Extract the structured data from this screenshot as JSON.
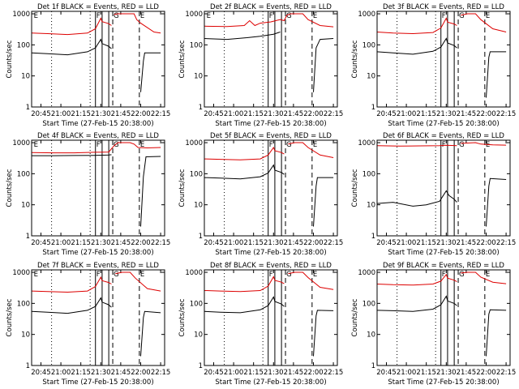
{
  "colors": {
    "events": "#000000",
    "lld": "#dd0000",
    "background": "#ffffff"
  },
  "chart_data": [
    {
      "type": "line",
      "title": "Det 1f BLACK = Events, RED = LLD",
      "xlabel": "Start Time (27-Feb-15 20:38:00)",
      "ylabel": "Counts/sec",
      "x_ticks": [
        "20:45",
        "21:00",
        "21:15",
        "21:30",
        "21:45",
        "22:00",
        "22:15"
      ],
      "y_ticks": [
        "1",
        "10",
        "100",
        "1000"
      ],
      "yscale": "log",
      "ylim": [
        1,
        1200
      ],
      "markers": [
        "E",
        "F",
        "G",
        "E"
      ],
      "series": [
        {
          "name": "LLD",
          "x": [
            "20:38",
            "20:50",
            "21:05",
            "21:20",
            "21:26",
            "21:30",
            "21:31",
            "21:36",
            "21:38",
            "21:39",
            "21:40",
            "21:43",
            "21:48",
            "21:55",
            "21:57",
            "22:00",
            "22:10",
            "22:15"
          ],
          "y": [
            240,
            230,
            215,
            240,
            330,
            720,
            560,
            480,
            420,
            null,
            950,
            1000,
            1000,
            1000,
            650,
            500,
            260,
            240
          ]
        },
        {
          "name": "Events",
          "x": [
            "20:38",
            "20:50",
            "21:05",
            "21:20",
            "21:26",
            "21:30",
            "21:31",
            "21:36",
            "21:38",
            "21:39",
            "21:59",
            "22:00",
            "22:02",
            "22:03",
            "22:15"
          ],
          "y": [
            55,
            52,
            48,
            60,
            80,
            150,
            110,
            90,
            75,
            null,
            null,
            3,
            30,
            55,
            55
          ]
        }
      ]
    },
    {
      "type": "line",
      "title": "Det 2f BLACK = Events, RED = LLD",
      "xlabel": "Start Time (27-Feb-15 20:38:00)",
      "ylabel": "Counts/sec",
      "x_ticks": [
        "20:45",
        "21:00",
        "21:15",
        "21:30",
        "21:45",
        "22:00",
        "22:15"
      ],
      "y_ticks": [
        "1",
        "10",
        "100",
        "1000"
      ],
      "yscale": "log",
      "ylim": [
        1,
        1200
      ],
      "markers": [
        "E",
        "F",
        "G",
        "E"
      ],
      "series": [
        {
          "name": "LLD",
          "x": [
            "20:38",
            "20:55",
            "21:08",
            "21:12",
            "21:16",
            "21:20",
            "21:28",
            "21:35",
            "21:38",
            "21:40",
            "21:43",
            "21:46",
            "21:52",
            "21:56",
            "22:05",
            "22:15"
          ],
          "y": [
            400,
            390,
            420,
            600,
            420,
            500,
            550,
            650,
            600,
            900,
            1000,
            1000,
            1000,
            650,
            420,
            380
          ]
        },
        {
          "name": "Events",
          "x": [
            "20:38",
            "20:55",
            "21:10",
            "21:20",
            "21:30",
            "21:35",
            "21:39",
            "21:59",
            "22:00",
            "22:02",
            "22:05",
            "22:15"
          ],
          "y": [
            160,
            150,
            170,
            190,
            220,
            260,
            null,
            null,
            3,
            80,
            150,
            160
          ]
        }
      ]
    },
    {
      "type": "line",
      "title": "Det 3f BLACK = Events, RED = LLD",
      "xlabel": "Start Time (27-Feb-15 20:38:00)",
      "ylabel": "Counts/sec",
      "x_ticks": [
        "20:45",
        "21:00",
        "21:15",
        "21:30",
        "21:45",
        "22:00",
        "22:15"
      ],
      "y_ticks": [
        "1",
        "10",
        "100",
        "1000"
      ],
      "yscale": "log",
      "ylim": [
        1,
        1200
      ],
      "markers": [
        "F",
        "G",
        "E"
      ],
      "series": [
        {
          "name": "LLD",
          "x": [
            "20:38",
            "20:50",
            "21:05",
            "21:20",
            "21:26",
            "21:30",
            "21:31",
            "21:36",
            "21:38",
            "21:39",
            "21:41",
            "21:46",
            "21:52",
            "21:56",
            "22:05",
            "22:15"
          ],
          "y": [
            260,
            240,
            230,
            250,
            350,
            720,
            540,
            470,
            420,
            null,
            900,
            1000,
            1000,
            650,
            330,
            260
          ]
        },
        {
          "name": "Events",
          "x": [
            "20:38",
            "20:50",
            "21:05",
            "21:20",
            "21:26",
            "21:30",
            "21:31",
            "21:36",
            "21:38",
            "21:39",
            "21:59",
            "22:00",
            "22:02",
            "22:03",
            "22:15"
          ],
          "y": [
            60,
            55,
            50,
            62,
            85,
            160,
            115,
            95,
            80,
            null,
            null,
            2,
            40,
            60,
            60
          ]
        }
      ]
    },
    {
      "type": "line",
      "title": "Det 4f BLACK = Events, RED = LLD",
      "xlabel": "Start Time (27-Feb-15 20:38:00)",
      "ylabel": "Counts/sec",
      "x_ticks": [
        "20:45",
        "21:00",
        "21:15",
        "21:30",
        "21:45",
        "22:00",
        "22:15"
      ],
      "y_ticks": [
        "1",
        "10",
        "100",
        "1000"
      ],
      "yscale": "log",
      "ylim": [
        1,
        1200
      ],
      "markers": [
        "E",
        "F",
        "G",
        "E"
      ],
      "series": [
        {
          "name": "LLD",
          "x": [
            "20:38",
            "20:55",
            "21:10",
            "21:25",
            "21:36",
            "21:40",
            "21:43",
            "21:46",
            "21:52",
            "21:55",
            "21:58",
            "22:05",
            "22:15"
          ],
          "y": [
            480,
            470,
            470,
            490,
            500,
            800,
            1000,
            1000,
            1000,
            900,
            700,
            680,
            700
          ]
        },
        {
          "name": "Events",
          "x": [
            "20:38",
            "20:55",
            "21:10",
            "21:25",
            "21:36",
            "21:38",
            "21:39",
            "21:59",
            "22:00",
            "22:02",
            "22:04",
            "22:15"
          ],
          "y": [
            380,
            380,
            385,
            390,
            400,
            410,
            null,
            null,
            2,
            80,
            350,
            360
          ]
        }
      ]
    },
    {
      "type": "line",
      "title": "Det 5f BLACK = Events, RED = LLD",
      "xlabel": "Start Time (27-Feb-15 20:38:00)",
      "ylabel": "Counts/sec",
      "x_ticks": [
        "20:45",
        "21:00",
        "21:15",
        "21:30",
        "21:45",
        "22:00",
        "22:15"
      ],
      "y_ticks": [
        "1",
        "10",
        "100",
        "1000"
      ],
      "yscale": "log",
      "ylim": [
        1,
        1200
      ],
      "markers": [
        "F",
        "G",
        "E"
      ],
      "series": [
        {
          "name": "LLD",
          "x": [
            "20:38",
            "20:50",
            "21:05",
            "21:20",
            "21:26",
            "21:30",
            "21:31",
            "21:36",
            "21:38",
            "21:39",
            "21:41",
            "21:46",
            "21:52",
            "21:56",
            "22:05",
            "22:15"
          ],
          "y": [
            300,
            290,
            280,
            300,
            400,
            700,
            550,
            480,
            430,
            null,
            900,
            1000,
            1000,
            700,
            400,
            330
          ]
        },
        {
          "name": "Events",
          "x": [
            "20:38",
            "20:50",
            "21:05",
            "21:20",
            "21:26",
            "21:30",
            "21:31",
            "21:36",
            "21:38",
            "21:39",
            "21:59",
            "22:00",
            "22:02",
            "22:03",
            "22:15"
          ],
          "y": [
            75,
            72,
            68,
            80,
            105,
            190,
            130,
            110,
            95,
            null,
            null,
            2,
            40,
            75,
            75
          ]
        }
      ]
    },
    {
      "type": "line",
      "title": "Det 6f BLACK = Events, RED = LLD",
      "xlabel": "Start Time (27-Feb-15 20:38:00)",
      "ylabel": "Counts/sec",
      "x_ticks": [
        "20:45",
        "21:00",
        "21:15",
        "21:30",
        "21:45",
        "22:00",
        "22:15"
      ],
      "y_ticks": [
        "1",
        "10",
        "100",
        "1000"
      ],
      "yscale": "log",
      "ylim": [
        1,
        1200
      ],
      "markers": [
        "F",
        "G",
        "E"
      ],
      "series": [
        {
          "name": "LLD",
          "x": [
            "20:38",
            "20:55",
            "21:10",
            "21:25",
            "21:30",
            "21:38",
            "21:39",
            "21:41",
            "21:52",
            "21:56",
            "22:05",
            "22:15"
          ],
          "y": [
            800,
            780,
            790,
            800,
            820,
            800,
            null,
            950,
            1000,
            900,
            850,
            830
          ]
        },
        {
          "name": "Events",
          "x": [
            "20:38",
            "20:50",
            "21:05",
            "21:15",
            "21:25",
            "21:30",
            "21:32",
            "21:36",
            "21:38",
            "21:39",
            "21:59",
            "22:00",
            "22:02",
            "22:03",
            "22:15"
          ],
          "y": [
            11,
            12,
            9,
            10,
            13,
            28,
            20,
            15,
            12,
            null,
            null,
            2,
            40,
            70,
            65
          ]
        }
      ]
    },
    {
      "type": "line",
      "title": "Det 7f BLACK = Events, RED = LLD",
      "xlabel": "Start Time (27-Feb-15 20:38:00)",
      "ylabel": "Counts/sec",
      "x_ticks": [
        "20:45",
        "21:00",
        "21:15",
        "21:30",
        "21:45",
        "22:00",
        "22:15"
      ],
      "y_ticks": [
        "1",
        "10",
        "100",
        "1000"
      ],
      "yscale": "log",
      "ylim": [
        1,
        1200
      ],
      "markers": [
        "E",
        "F",
        "G",
        "E"
      ],
      "series": [
        {
          "name": "LLD",
          "x": [
            "20:38",
            "20:50",
            "21:05",
            "21:20",
            "21:26",
            "21:30",
            "21:31",
            "21:36",
            "21:38",
            "21:39",
            "21:41",
            "21:46",
            "21:52",
            "21:56",
            "22:05",
            "22:15"
          ],
          "y": [
            250,
            240,
            230,
            250,
            350,
            700,
            540,
            470,
            420,
            null,
            900,
            1000,
            1000,
            650,
            300,
            250
          ]
        },
        {
          "name": "Events",
          "x": [
            "20:38",
            "20:50",
            "21:05",
            "21:20",
            "21:26",
            "21:30",
            "21:31",
            "21:36",
            "21:38",
            "21:39",
            "21:59",
            "22:00",
            "22:02",
            "22:03",
            "22:15"
          ],
          "y": [
            55,
            52,
            48,
            60,
            80,
            150,
            110,
            90,
            75,
            null,
            null,
            2,
            35,
            55,
            50
          ]
        }
      ]
    },
    {
      "type": "line",
      "title": "Det 8f BLACK = Events, RED = LLD",
      "xlabel": "Start Time (27-Feb-15 20:38:00)",
      "ylabel": "Counts/sec",
      "x_ticks": [
        "20:45",
        "21:00",
        "21:15",
        "21:30",
        "21:45",
        "22:00",
        "22:15"
      ],
      "y_ticks": [
        "1",
        "10",
        "100",
        "1000"
      ],
      "yscale": "log",
      "ylim": [
        1,
        1200
      ],
      "markers": [
        "F",
        "G",
        "E"
      ],
      "series": [
        {
          "name": "LLD",
          "x": [
            "20:38",
            "20:50",
            "21:05",
            "21:20",
            "21:26",
            "21:30",
            "21:31",
            "21:36",
            "21:38",
            "21:39",
            "21:41",
            "21:46",
            "21:52",
            "21:56",
            "22:05",
            "22:15"
          ],
          "y": [
            260,
            250,
            240,
            260,
            360,
            720,
            550,
            480,
            430,
            null,
            900,
            1000,
            1000,
            680,
            330,
            280
          ]
        },
        {
          "name": "Events",
          "x": [
            "20:38",
            "20:50",
            "21:05",
            "21:20",
            "21:26",
            "21:30",
            "21:31",
            "21:36",
            "21:38",
            "21:39",
            "21:59",
            "22:00",
            "22:02",
            "22:03",
            "22:15"
          ],
          "y": [
            55,
            52,
            50,
            62,
            85,
            160,
            115,
            95,
            80,
            null,
            null,
            2,
            40,
            60,
            58
          ]
        }
      ]
    },
    {
      "type": "line",
      "title": "Det 9f BLACK = Events, RED = LLD",
      "xlabel": "Start Time (27-Feb-15 20:38:00)",
      "ylabel": "Counts/sec",
      "x_ticks": [
        "20:45",
        "21:00",
        "21:15",
        "21:30",
        "21:45",
        "22:00",
        "22:15"
      ],
      "y_ticks": [
        "1",
        "10",
        "100",
        "1000"
      ],
      "yscale": "log",
      "ylim": [
        1,
        1200
      ],
      "markers": [
        "F",
        "G",
        "E"
      ],
      "series": [
        {
          "name": "LLD",
          "x": [
            "20:38",
            "20:50",
            "21:05",
            "21:20",
            "21:26",
            "21:30",
            "21:31",
            "21:36",
            "21:38",
            "21:39",
            "21:41",
            "21:46",
            "21:52",
            "21:56",
            "22:05",
            "22:15"
          ],
          "y": [
            420,
            400,
            390,
            420,
            520,
            850,
            650,
            560,
            500,
            null,
            950,
            1000,
            1000,
            700,
            480,
            430
          ]
        },
        {
          "name": "Events",
          "x": [
            "20:38",
            "20:50",
            "21:05",
            "21:20",
            "21:26",
            "21:30",
            "21:31",
            "21:36",
            "21:38",
            "21:39",
            "21:59",
            "22:00",
            "22:02",
            "22:03",
            "22:15"
          ],
          "y": [
            60,
            58,
            55,
            65,
            90,
            170,
            120,
            100,
            85,
            null,
            null,
            2,
            45,
            62,
            60
          ]
        }
      ]
    }
  ]
}
